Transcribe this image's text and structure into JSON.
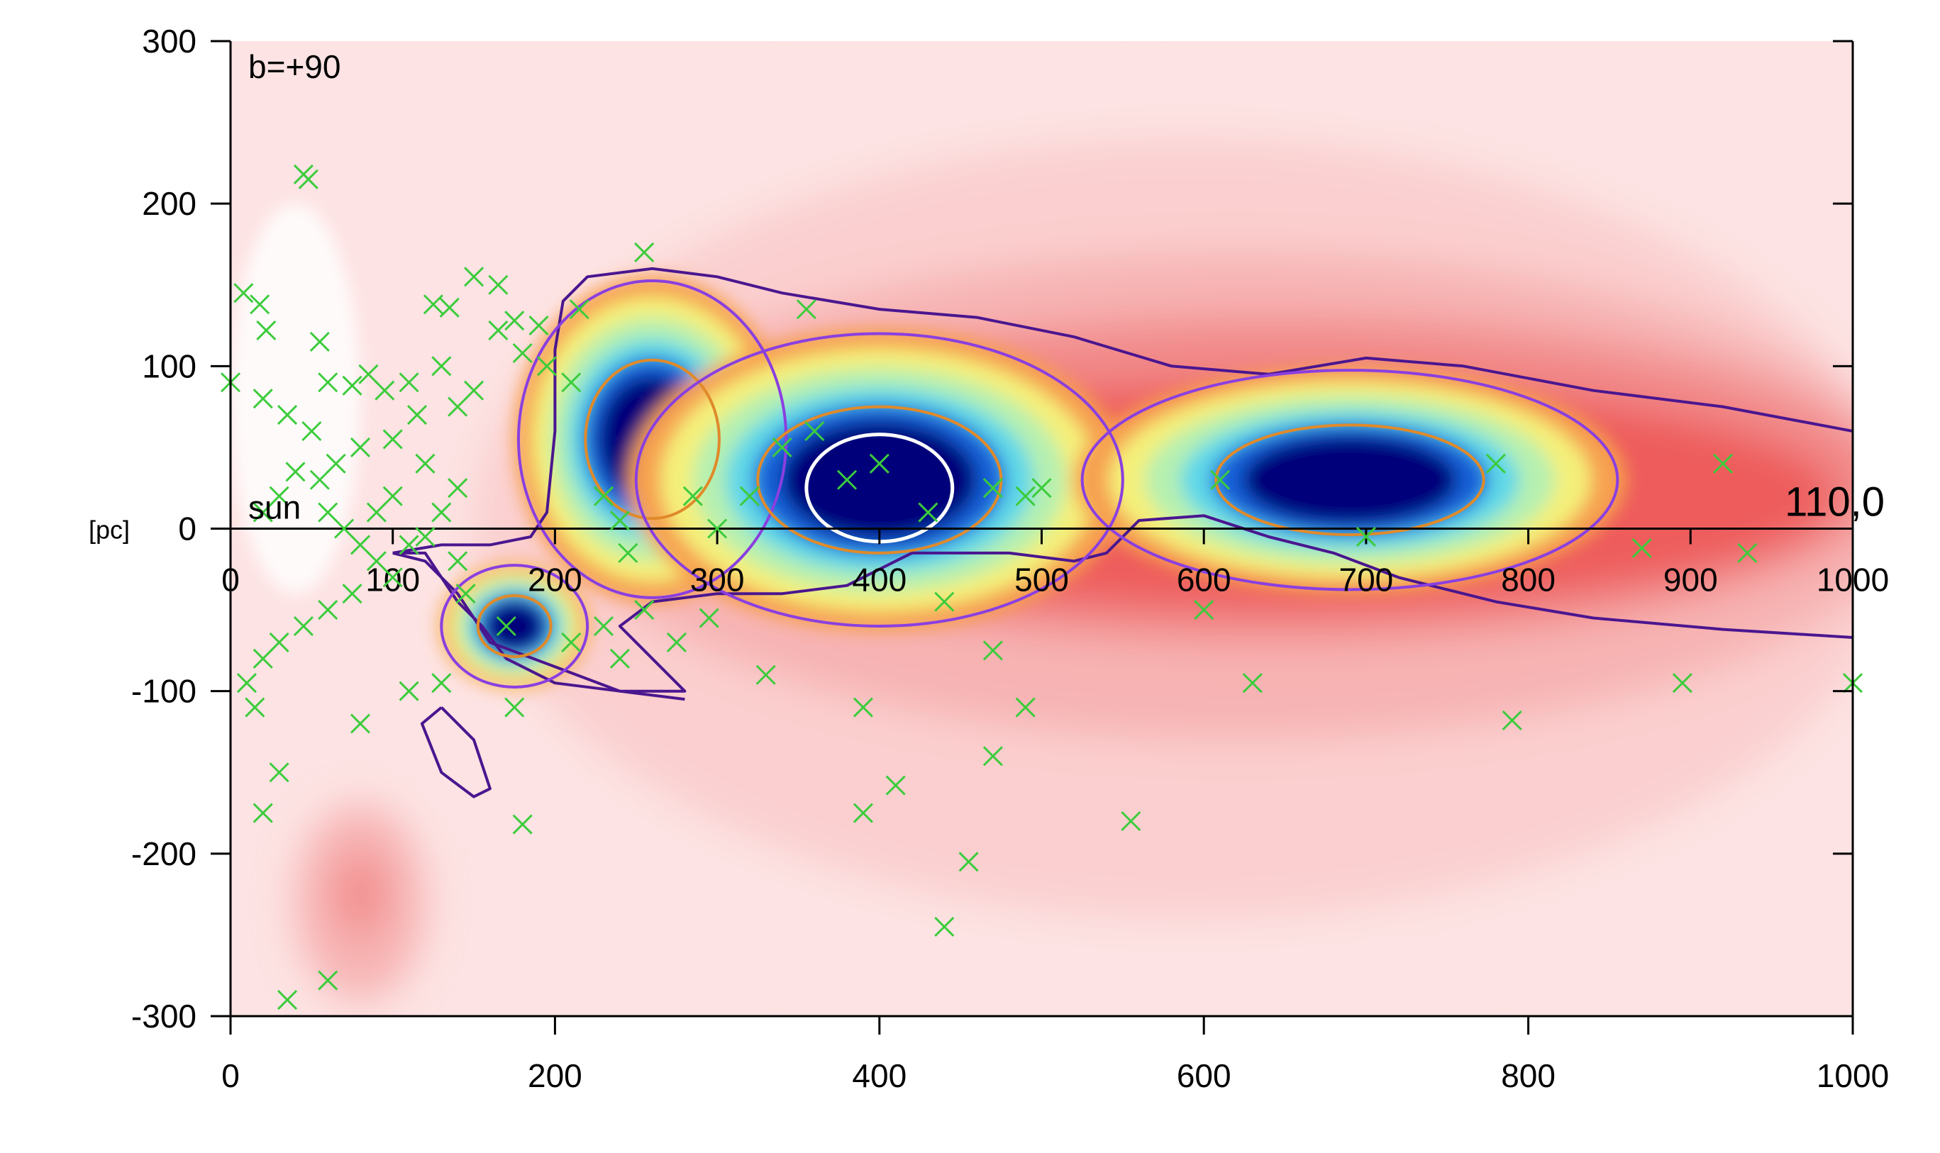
{
  "chart_data": {
    "type": "heatmap",
    "title": "",
    "xlabel": "",
    "ylabel": "[pc]",
    "xlim": [
      0,
      1000
    ],
    "ylim": [
      -300,
      300
    ],
    "x_ticks": [
      0,
      200,
      400,
      600,
      800,
      1000
    ],
    "y_ticks": [
      -300,
      -200,
      -100,
      0,
      100,
      200,
      300
    ],
    "inner_axis_ticks": [
      0,
      100,
      200,
      300,
      400,
      500,
      600,
      700,
      800,
      900,
      1000
    ],
    "inner_axis_labels": [
      "0",
      "100",
      "200",
      "300",
      "400",
      "500",
      "600",
      "700",
      "800",
      "900",
      "1000"
    ],
    "annotations": {
      "b_label": "b=+90",
      "sun_label": "sun",
      "ylabel_small": "[pc]",
      "direction_label": "110,0"
    },
    "colors": {
      "background": "#ffffff",
      "map_faint": "#fde3e3",
      "map_light": "#fbcfcf",
      "map_pink": "#f7b3b3",
      "map_salmon": "#f28a8a",
      "map_red": "#ee5c5c",
      "map_orange": "#f6a050",
      "map_yellow": "#f4f07a",
      "map_green": "#b6f0b0",
      "map_cyan": "#5fd8e8",
      "map_blue": "#1460d8",
      "map_navy": "#00007a",
      "contour_outer": "#4a168f",
      "contour_mid": "#8a3fe0",
      "contour_orange": "#e08a2a",
      "contour_white": "#ffffff",
      "stars": "#3ccc3c"
    },
    "density_blobs": [
      {
        "level": "faint",
        "cx": 560,
        "cy": 0,
        "rx": 480,
        "ry": 300
      },
      {
        "level": "light",
        "cx": 590,
        "cy": 0,
        "rx": 440,
        "ry": 240
      },
      {
        "level": "pink",
        "cx": 620,
        "cy": 20,
        "rx": 420,
        "ry": 150
      },
      {
        "level": "salmon",
        "cx": 640,
        "cy": 30,
        "rx": 380,
        "ry": 100
      },
      {
        "level": "red",
        "cx": 650,
        "cy": 20,
        "rx": 340,
        "ry": 70
      },
      {
        "level": "pink",
        "cx": 80,
        "cy": -230,
        "rx": 40,
        "ry": 60
      },
      {
        "level": "salmon",
        "cx": 80,
        "cy": -225,
        "rx": 15,
        "ry": 25
      }
    ],
    "cores": [
      {
        "name": "core-260",
        "cx": 260,
        "cy": 55,
        "rx": 55,
        "ry": 65
      },
      {
        "name": "core-400",
        "cx": 400,
        "cy": 30,
        "rx": 100,
        "ry": 60
      },
      {
        "name": "core-700",
        "cx": 690,
        "cy": 30,
        "rx": 110,
        "ry": 45
      },
      {
        "name": "clump-175",
        "cx": 175,
        "cy": -60,
        "rx": 30,
        "ry": 25
      }
    ],
    "contours": [
      {
        "name": "outer-main",
        "color": "outer",
        "points": [
          [
            100,
            -15
          ],
          [
            130,
            -10
          ],
          [
            160,
            -10
          ],
          [
            185,
            -5
          ],
          [
            195,
            10
          ],
          [
            200,
            60
          ],
          [
            200,
            110
          ],
          [
            205,
            140
          ],
          [
            220,
            155
          ],
          [
            260,
            160
          ],
          [
            300,
            155
          ],
          [
            340,
            145
          ],
          [
            400,
            135
          ],
          [
            460,
            130
          ],
          [
            520,
            118
          ],
          [
            580,
            100
          ],
          [
            640,
            95
          ],
          [
            700,
            105
          ],
          [
            760,
            100
          ],
          [
            840,
            85
          ],
          [
            920,
            75
          ],
          [
            1000,
            60
          ]
        ]
      },
      {
        "name": "outer-main-lower",
        "color": "outer",
        "points": [
          [
            1000,
            -67
          ],
          [
            920,
            -62
          ],
          [
            840,
            -55
          ],
          [
            780,
            -45
          ],
          [
            720,
            -30
          ],
          [
            680,
            -15
          ],
          [
            640,
            -5
          ],
          [
            600,
            8
          ],
          [
            560,
            5
          ],
          [
            540,
            -15
          ],
          [
            520,
            -20
          ],
          [
            480,
            -15
          ],
          [
            420,
            -15
          ],
          [
            380,
            -35
          ],
          [
            340,
            -40
          ],
          [
            300,
            -40
          ],
          [
            260,
            -45
          ],
          [
            240,
            -60
          ],
          [
            260,
            -80
          ],
          [
            280,
            -100
          ],
          [
            240,
            -100
          ],
          [
            200,
            -85
          ],
          [
            160,
            -70
          ],
          [
            140,
            -40
          ],
          [
            120,
            -20
          ],
          [
            100,
            -15
          ]
        ]
      },
      {
        "name": "outer-small-1",
        "color": "outer",
        "points": [
          [
            100,
            -15
          ],
          [
            120,
            -15
          ],
          [
            130,
            -30
          ],
          [
            140,
            -45
          ],
          [
            155,
            -60
          ],
          [
            170,
            -80
          ],
          [
            200,
            -95
          ],
          [
            240,
            -100
          ],
          [
            280,
            -105
          ]
        ]
      },
      {
        "name": "outer-ellipse-1",
        "color": "outer",
        "points": [
          [
            130,
            -110
          ],
          [
            150,
            -130
          ],
          [
            160,
            -160
          ],
          [
            150,
            -165
          ],
          [
            130,
            -150
          ],
          [
            118,
            -120
          ],
          [
            130,
            -110
          ]
        ]
      }
    ],
    "stars": [
      [
        45,
        218
      ],
      [
        48,
        215
      ],
      [
        8,
        145
      ],
      [
        18,
        138
      ],
      [
        22,
        122
      ],
      [
        55,
        115
      ],
      [
        0,
        90
      ],
      [
        210,
        90
      ],
      [
        255,
        170
      ],
      [
        355,
        135
      ],
      [
        150,
        155
      ],
      [
        165,
        150
      ],
      [
        125,
        138
      ],
      [
        135,
        136
      ],
      [
        175,
        128
      ],
      [
        190,
        125
      ],
      [
        215,
        135
      ],
      [
        165,
        122
      ],
      [
        180,
        108
      ],
      [
        195,
        100
      ],
      [
        20,
        80
      ],
      [
        35,
        70
      ],
      [
        50,
        60
      ],
      [
        60,
        90
      ],
      [
        75,
        88
      ],
      [
        85,
        95
      ],
      [
        95,
        85
      ],
      [
        110,
        90
      ],
      [
        130,
        100
      ],
      [
        140,
        75
      ],
      [
        150,
        85
      ],
      [
        115,
        70
      ],
      [
        100,
        55
      ],
      [
        80,
        50
      ],
      [
        65,
        40
      ],
      [
        55,
        30
      ],
      [
        40,
        35
      ],
      [
        30,
        20
      ],
      [
        20,
        10
      ],
      [
        60,
        10
      ],
      [
        70,
        0
      ],
      [
        80,
        -10
      ],
      [
        90,
        -20
      ],
      [
        100,
        -30
      ],
      [
        110,
        -10
      ],
      [
        120,
        -5
      ],
      [
        130,
        10
      ],
      [
        140,
        25
      ],
      [
        120,
        40
      ],
      [
        100,
        20
      ],
      [
        90,
        10
      ],
      [
        75,
        -40
      ],
      [
        60,
        -50
      ],
      [
        45,
        -60
      ],
      [
        30,
        -70
      ],
      [
        20,
        -80
      ],
      [
        10,
        -95
      ],
      [
        15,
        -110
      ],
      [
        30,
        -150
      ],
      [
        20,
        -175
      ],
      [
        35,
        -290
      ],
      [
        60,
        -278
      ],
      [
        80,
        -120
      ],
      [
        110,
        -100
      ],
      [
        130,
        -95
      ],
      [
        170,
        -60
      ],
      [
        175,
        -110
      ],
      [
        180,
        -182
      ],
      [
        140,
        -20
      ],
      [
        145,
        -40
      ],
      [
        210,
        -70
      ],
      [
        230,
        -60
      ],
      [
        240,
        -80
      ],
      [
        255,
        -50
      ],
      [
        275,
        -70
      ],
      [
        295,
        -55
      ],
      [
        330,
        -90
      ],
      [
        320,
        20
      ],
      [
        340,
        50
      ],
      [
        360,
        60
      ],
      [
        380,
        30
      ],
      [
        400,
        40
      ],
      [
        430,
        10
      ],
      [
        470,
        25
      ],
      [
        490,
        20
      ],
      [
        500,
        25
      ],
      [
        440,
        -45
      ],
      [
        470,
        -75
      ],
      [
        490,
        -110
      ],
      [
        470,
        -140
      ],
      [
        410,
        -158
      ],
      [
        390,
        -175
      ],
      [
        455,
        -205
      ],
      [
        440,
        -245
      ],
      [
        390,
        -110
      ],
      [
        555,
        -180
      ],
      [
        600,
        -50
      ],
      [
        630,
        -95
      ],
      [
        610,
        30
      ],
      [
        700,
        -5
      ],
      [
        780,
        40
      ],
      [
        790,
        -118
      ],
      [
        870,
        -12
      ],
      [
        895,
        -95
      ],
      [
        920,
        40
      ],
      [
        935,
        -15
      ],
      [
        1000,
        -95
      ],
      [
        285,
        20
      ],
      [
        300,
        0
      ],
      [
        230,
        20
      ],
      [
        240,
        5
      ],
      [
        245,
        -15
      ]
    ]
  }
}
